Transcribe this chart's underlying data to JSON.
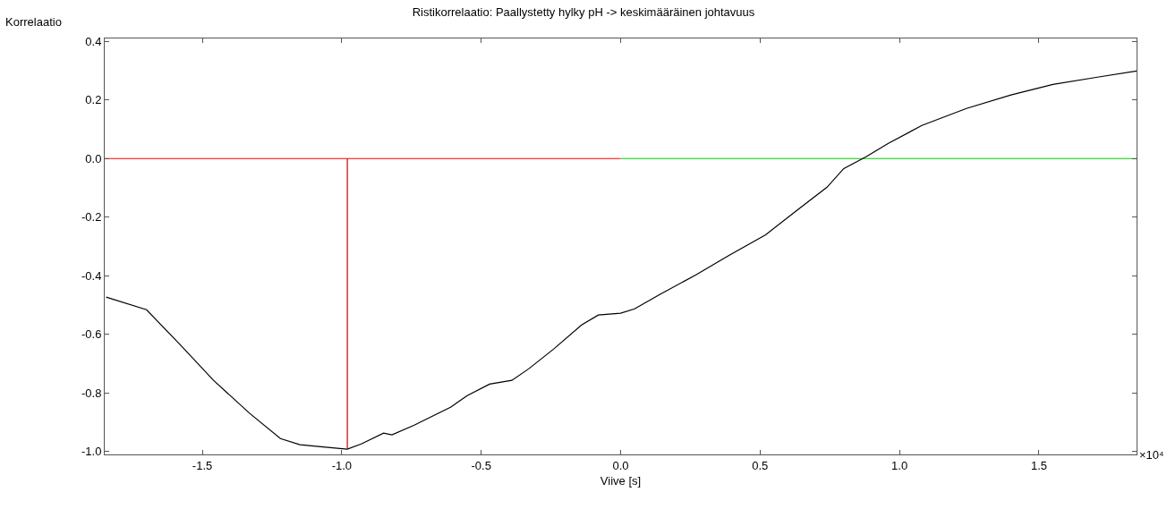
{
  "chart_data": {
    "type": "line",
    "title": "Ristikorrelaatio: Paallystetty hylky pH -> keskimääräinen johtavuus",
    "xlabel": "Viive [s]",
    "ylabel": "Korrelaatio",
    "annotations": [
      "×10⁴"
    ],
    "xlim": [
      -1.85,
      1.85
    ],
    "xticks": [
      -1.5,
      {
        "value": -1,
        "label": "-1.0"
      },
      -0.5,
      {
        "value": 0,
        "label": "0.0"
      },
      0.5,
      {
        "value": 1,
        "label": "1.0"
      },
      1.5
    ],
    "ylim": [
      -1.01,
      0.41
    ],
    "yticks": [
      {
        "value": -1,
        "label": "-1.0"
      },
      -0.8,
      -0.6,
      -0.4,
      -0.2,
      {
        "value": 0,
        "label": "0.0"
      },
      0.2,
      0.4
    ],
    "marker": "none",
    "line_style": "solid",
    "series": [
      {
        "color": "#ff0000",
        "x": [
          -1.85,
          0
        ],
        "values": [
          0,
          0
        ]
      },
      {
        "color": "#00cc00",
        "x": [
          0,
          1.85
        ],
        "values": [
          0,
          0
        ]
      },
      {
        "color": "#cc0000",
        "x": [
          -0.98,
          -0.98
        ],
        "values": [
          0,
          -0.99
        ]
      },
      {
        "color": "#000000",
        "x": [
          -1.845,
          -1.7,
          -1.58,
          -1.46,
          -1.33,
          -1.22,
          -1.15,
          -1.05,
          -0.98,
          -0.93,
          -0.85,
          -0.82,
          -0.74,
          -0.61,
          -0.55,
          -0.47,
          -0.39,
          -0.33,
          -0.24,
          -0.14,
          -0.08,
          0,
          0.05,
          0.14,
          0.27,
          0.39,
          0.52,
          0.64,
          0.74,
          0.8,
          0.88,
          0.96,
          1.08,
          1.24,
          1.4,
          1.55,
          1.71,
          1.85
        ],
        "values": [
          -0.473,
          -0.516,
          -0.635,
          -0.757,
          -0.87,
          -0.956,
          -0.977,
          -0.986,
          -0.992,
          -0.974,
          -0.937,
          -0.943,
          -0.91,
          -0.849,
          -0.809,
          -0.77,
          -0.757,
          -0.718,
          -0.65,
          -0.568,
          -0.534,
          -0.528,
          -0.513,
          -0.464,
          -0.397,
          -0.33,
          -0.26,
          -0.171,
          -0.098,
          -0.034,
          0.006,
          0.052,
          0.113,
          0.171,
          0.217,
          0.253,
          0.278,
          0.299
        ]
      }
    ]
  }
}
